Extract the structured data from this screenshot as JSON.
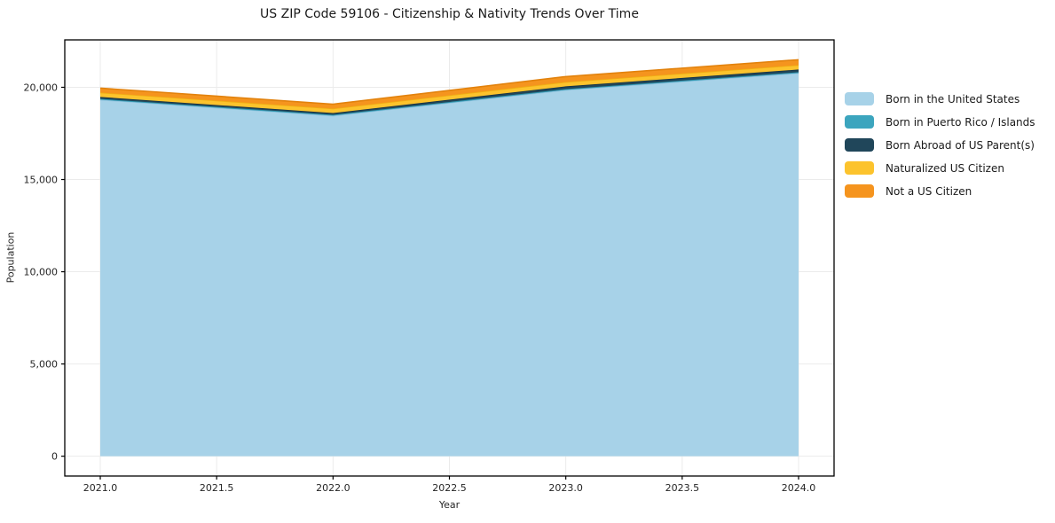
{
  "chart_data": {
    "type": "area",
    "stacked": true,
    "title": "US ZIP Code 59106 - Citizenship & Nativity Trends Over Time",
    "xlabel": "Year",
    "ylabel": "Population",
    "x": [
      2021,
      2022,
      2023,
      2024
    ],
    "series": [
      {
        "name": "Born in the United States",
        "color": "#A7D2E8",
        "edge_color": "#8FC2DE",
        "values": [
          19325,
          18460,
          19855,
          20770
        ]
      },
      {
        "name": "Born in Puerto Rico / Islands",
        "color": "#3CA5BE",
        "edge_color": "#2E93AC",
        "values": [
          50,
          50,
          50,
          50
        ]
      },
      {
        "name": "Born Abroad of US Parent(s)",
        "color": "#20465A",
        "edge_color": "#173344",
        "values": [
          100,
          95,
          145,
          145
        ]
      },
      {
        "name": "Naturalized US Citizen",
        "color": "#FCC32D",
        "edge_color": "#EFAE12",
        "values": [
          240,
          240,
          240,
          240
        ]
      },
      {
        "name": "Not a US Citizen",
        "color": "#F5941E",
        "edge_color": "#E2820D",
        "values": [
          240,
          240,
          290,
          290
        ]
      }
    ],
    "totals_by_year": [
      19955,
      19085,
      20580,
      21495
    ],
    "xlim": [
      2020.8475,
      2024.1525
    ],
    "ylim": [
      -1075,
      22570
    ],
    "x_ticks": [
      2021.0,
      2021.5,
      2022.0,
      2022.5,
      2023.0,
      2023.5,
      2024.0
    ],
    "x_tick_labels": [
      "2021.0",
      "2021.5",
      "2022.0",
      "2022.5",
      "2023.0",
      "2023.5",
      "2024.0"
    ],
    "y_ticks": [
      0,
      5000,
      10000,
      15000,
      20000
    ],
    "y_tick_labels": [
      "0",
      "5,000",
      "10,000",
      "15,000",
      "20,000"
    ],
    "grid": true,
    "grid_color": "#EBEBEB",
    "frame_color": "#000000",
    "background_color": "#FFFFFF",
    "legend_position": "right-of-plot"
  }
}
